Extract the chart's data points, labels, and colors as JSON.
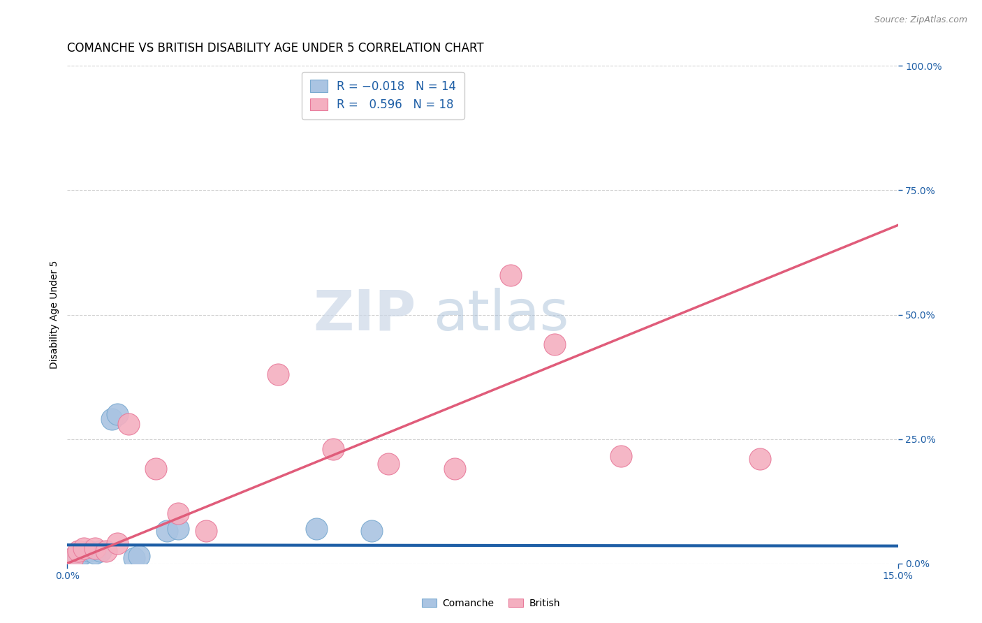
{
  "title": "COMANCHE VS BRITISH DISABILITY AGE UNDER 5 CORRELATION CHART",
  "source": "Source: ZipAtlas.com",
  "ylabel": "Disability Age Under 5",
  "xlim": [
    0.0,
    0.15
  ],
  "ylim": [
    0.0,
    1.0
  ],
  "ytick_labels_right": [
    "100.0%",
    "75.0%",
    "50.0%",
    "25.0%",
    "0.0%"
  ],
  "ytick_positions_right": [
    1.0,
    0.75,
    0.5,
    0.25,
    0.0
  ],
  "comanche_color": "#aac4e2",
  "british_color": "#f4afc0",
  "comanche_edge_color": "#7aaad0",
  "british_edge_color": "#e87a9a",
  "comanche_line_color": "#1f5fa6",
  "british_line_color": "#e05c7a",
  "legend_text_color": "#1f5fa6",
  "comanche_x": [
    0.001,
    0.002,
    0.003,
    0.004,
    0.005,
    0.006,
    0.008,
    0.009,
    0.012,
    0.013,
    0.018,
    0.02,
    0.045,
    0.055
  ],
  "comanche_y": [
    0.01,
    0.01,
    0.02,
    0.025,
    0.02,
    0.025,
    0.29,
    0.3,
    0.01,
    0.015,
    0.065,
    0.07,
    0.07,
    0.065
  ],
  "british_x": [
    0.001,
    0.002,
    0.003,
    0.005,
    0.007,
    0.009,
    0.011,
    0.016,
    0.02,
    0.025,
    0.038,
    0.048,
    0.058,
    0.07,
    0.08,
    0.088,
    0.1,
    0.125
  ],
  "british_y": [
    0.01,
    0.025,
    0.03,
    0.03,
    0.025,
    0.04,
    0.28,
    0.19,
    0.1,
    0.065,
    0.38,
    0.23,
    0.2,
    0.19,
    0.58,
    0.44,
    0.215,
    0.21
  ],
  "watermark_zip": "ZIP",
  "watermark_atlas": "atlas",
  "grid_color": "#d0d0d0",
  "background_color": "#ffffff",
  "title_fontsize": 12,
  "axis_label_fontsize": 10,
  "tick_fontsize": 10,
  "legend_fontsize": 12
}
